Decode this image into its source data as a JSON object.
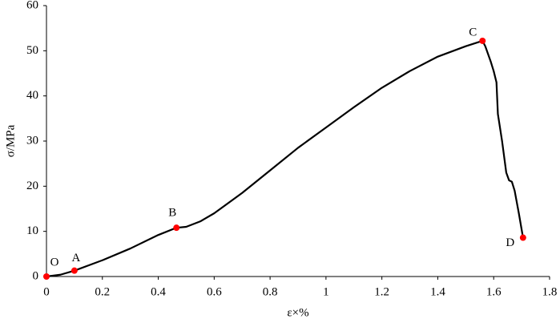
{
  "chart_data": {
    "type": "line",
    "xlabel": "ε×%",
    "ylabel": "σ/MPa",
    "x": [
      0,
      0.05,
      0.1,
      0.2,
      0.3,
      0.4,
      0.465,
      0.5,
      0.55,
      0.6,
      0.7,
      0.8,
      0.9,
      1.0,
      1.1,
      1.2,
      1.3,
      1.4,
      1.5,
      1.56,
      1.57,
      1.59,
      1.6,
      1.61,
      1.615,
      1.63,
      1.645,
      1.655,
      1.665,
      1.675,
      1.69,
      1.705
    ],
    "values": [
      0,
      0.4,
      1.3,
      3.6,
      6.2,
      9.2,
      10.8,
      11.0,
      12.2,
      14.0,
      18.5,
      23.5,
      28.5,
      33.0,
      37.5,
      41.8,
      45.5,
      48.7,
      51.0,
      52.2,
      51.0,
      47.5,
      45.5,
      43.0,
      36.0,
      30.0,
      23.0,
      21.3,
      21.0,
      19.0,
      14.0,
      8.6
    ],
    "color": "#000000",
    "points": [
      {
        "label": "O",
        "x": 0,
        "y": 0
      },
      {
        "label": "A",
        "x": 0.1,
        "y": 1.3
      },
      {
        "label": "B",
        "x": 0.465,
        "y": 10.8
      },
      {
        "label": "C",
        "x": 1.56,
        "y": 52.2
      },
      {
        "label": "D",
        "x": 1.705,
        "y": 8.6
      }
    ],
    "point_color": "#ff0000",
    "xlim": [
      0,
      1.8
    ],
    "xticks": [
      0,
      0.2,
      0.4,
      0.6,
      0.8,
      1,
      1.2,
      1.4,
      1.6,
      1.8
    ],
    "ylim": [
      0,
      60
    ],
    "yticks": [
      0,
      10,
      20,
      30,
      40,
      50,
      60
    ],
    "grid": false
  }
}
